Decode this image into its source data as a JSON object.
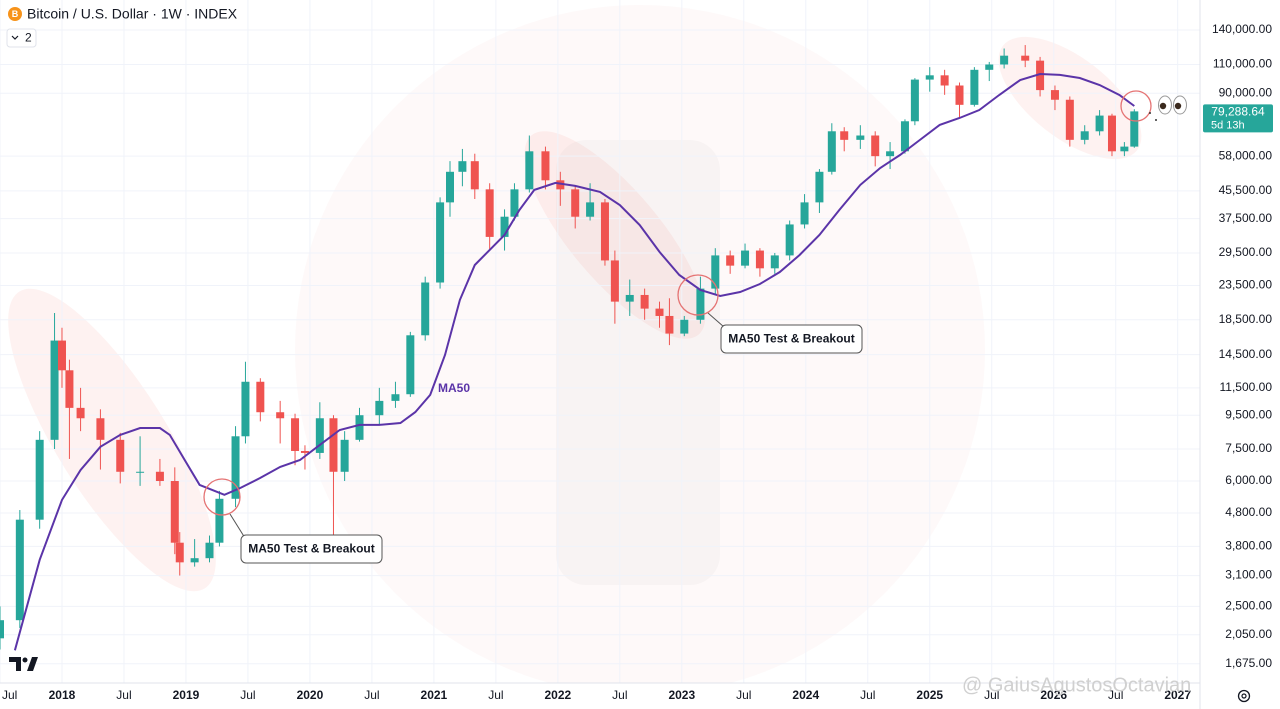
{
  "chart_data": {
    "type": "candlestick",
    "title": "Bitcoin / U.S. Dollar · 1W · INDEX",
    "indicator_count": "2",
    "log_scale": true,
    "grid": true,
    "xlim": [
      2017.5,
      2027.18
    ],
    "ylim": [
      1464,
      172600
    ],
    "xticks": [
      {
        "value": 2017.5,
        "label": "Jul"
      },
      2018,
      {
        "value": 2018.5,
        "label": "Jul"
      },
      2019,
      {
        "value": 2019.5,
        "label": "Jul"
      },
      2020,
      {
        "value": 2020.5,
        "label": "Jul"
      },
      2021,
      {
        "value": 2021.5,
        "label": "Jul"
      },
      2022,
      {
        "value": 2022.5,
        "label": "Jul"
      },
      2023,
      {
        "value": 2023.5,
        "label": "Jul"
      },
      2024,
      {
        "value": 2024.5,
        "label": "Jul"
      },
      2025,
      {
        "value": 2025.5,
        "label": "Jul"
      },
      2026,
      {
        "value": 2026.5,
        "label": "Jul"
      },
      2027
    ],
    "yticks": [
      {
        "value": 140000,
        "label": "140,000.00"
      },
      {
        "value": 110000,
        "label": "110,000.00"
      },
      {
        "value": 90000,
        "label": "90,000.00"
      },
      {
        "value": 58000,
        "label": "58,000.00"
      },
      {
        "value": 45500,
        "label": "45,500.00"
      },
      {
        "value": 37500,
        "label": "37,500.00"
      },
      {
        "value": 29500,
        "label": "29,500.00"
      },
      {
        "value": 23500,
        "label": "23,500.00"
      },
      {
        "value": 18500,
        "label": "18,500.00"
      },
      {
        "value": 14500,
        "label": "14,500.00"
      },
      {
        "value": 11500,
        "label": "11,500.00"
      },
      {
        "value": 9500,
        "label": "9,500.00"
      },
      {
        "value": 7500,
        "label": "7,500.00"
      },
      {
        "value": 6000,
        "label": "6,000.00"
      },
      {
        "value": 4800,
        "label": "4,800.00"
      },
      {
        "value": 3800,
        "label": "3,800.00"
      },
      {
        "value": 3100,
        "label": "3,100.00"
      },
      {
        "value": 2500,
        "label": "2,500.00"
      },
      {
        "value": 2050,
        "label": "2,050.00"
      },
      {
        "value": 1675,
        "label": "1,675.00"
      }
    ],
    "series": [
      {
        "type": "candlestick",
        "up_color": "#26a69a",
        "down_color": "#ef5350",
        "x": [
          2017.5,
          2017.66,
          2017.82,
          2017.94,
          2018.0,
          2018.06,
          2018.15,
          2018.31,
          2018.47,
          2018.63,
          2018.79,
          2018.91,
          2018.95,
          2019.07,
          2019.19,
          2019.27,
          2019.4,
          2019.48,
          2019.6,
          2019.76,
          2019.88,
          2019.96,
          2020.08,
          2020.19,
          2020.28,
          2020.4,
          2020.56,
          2020.69,
          2020.81,
          2020.93,
          2021.05,
          2021.13,
          2021.23,
          2021.33,
          2021.45,
          2021.57,
          2021.65,
          2021.77,
          2021.9,
          2022.02,
          2022.14,
          2022.26,
          2022.38,
          2022.46,
          2022.58,
          2022.7,
          2022.82,
          2022.9,
          2023.02,
          2023.15,
          2023.27,
          2023.39,
          2023.51,
          2023.63,
          2023.75,
          2023.87,
          2023.99,
          2024.11,
          2024.21,
          2024.31,
          2024.44,
          2024.56,
          2024.68,
          2024.8,
          2024.88,
          2025.0,
          2025.12,
          2025.24,
          2025.36,
          2025.48,
          2025.6,
          2025.77,
          2025.89,
          2026.01,
          2026.13,
          2026.25,
          2026.37,
          2026.47,
          2026.57,
          2026.65
        ],
        "open": [
          2000,
          2270,
          4580,
          8000,
          16000,
          13000,
          10000,
          9300,
          8000,
          6400,
          6400,
          6000,
          3900,
          3400,
          3500,
          3900,
          5300,
          8200,
          12000,
          9700,
          9300,
          7400,
          7300,
          9300,
          6400,
          8000,
          9500,
          10500,
          11000,
          16600,
          24000,
          42000,
          52000,
          56000,
          46000,
          33000,
          38000,
          46000,
          60000,
          49000,
          46000,
          38000,
          42000,
          28000,
          21000,
          22000,
          20000,
          19000,
          16800,
          18500,
          23000,
          29000,
          27000,
          30000,
          26500,
          29000,
          36000,
          42000,
          52000,
          69000,
          65000,
          67000,
          58000,
          60000,
          74000,
          99000,
          102000,
          95000,
          83000,
          106000,
          110000,
          117000,
          113000,
          92000,
          86000,
          65000,
          69000,
          77000,
          60000,
          62000
        ],
        "high": [
          2500,
          4900,
          8500,
          19400,
          17500,
          14000,
          11500,
          9900,
          8400,
          8200,
          7000,
          6600,
          4200,
          4000,
          4100,
          5600,
          8800,
          13800,
          12300,
          10500,
          9600,
          7700,
          10400,
          9500,
          8500,
          10000,
          11500,
          12000,
          17000,
          25000,
          43500,
          56000,
          61000,
          59000,
          48000,
          40000,
          48000,
          67000,
          62000,
          52000,
          47000,
          48000,
          43000,
          30000,
          24500,
          23000,
          21000,
          21500,
          19000,
          25000,
          30500,
          30000,
          31500,
          30500,
          29500,
          37000,
          44500,
          53000,
          73000,
          71000,
          72000,
          69000,
          64000,
          75000,
          100000,
          108000,
          106000,
          97000,
          108000,
          112000,
          123000,
          126000,
          116000,
          95000,
          88000,
          72000,
          80000,
          78000,
          64000,
          80500
        ],
        "low": [
          1850,
          2150,
          4300,
          7500,
          11500,
          7000,
          8500,
          6500,
          5900,
          5800,
          5800,
          3600,
          3100,
          3300,
          3400,
          3800,
          5000,
          7800,
          9100,
          7800,
          6700,
          6500,
          7000,
          4100,
          6000,
          7900,
          8900,
          10000,
          10800,
          16000,
          23000,
          38000,
          47000,
          43000,
          30000,
          30000,
          37000,
          45000,
          46000,
          41000,
          35000,
          37000,
          27000,
          18000,
          19000,
          18500,
          17500,
          15500,
          16500,
          18000,
          22000,
          25500,
          26500,
          25000,
          25500,
          28000,
          35000,
          39000,
          51000,
          60000,
          61000,
          54000,
          53000,
          59000,
          72000,
          91000,
          89000,
          76000,
          82000,
          98000,
          107000,
          108000,
          88000,
          80000,
          62000,
          63000,
          67000,
          58000,
          58000,
          61500
        ],
        "close": [
          2270,
          4580,
          8000,
          16000,
          13000,
          10000,
          9300,
          8000,
          6400,
          6400,
          6000,
          3900,
          3400,
          3500,
          3900,
          5300,
          8200,
          12000,
          9700,
          9300,
          7400,
          7300,
          9300,
          6400,
          8000,
          9500,
          10500,
          11000,
          16600,
          24000,
          42000,
          52000,
          56000,
          46000,
          33000,
          38000,
          46000,
          60000,
          49000,
          46000,
          38000,
          42000,
          28000,
          21000,
          22000,
          20000,
          19000,
          16800,
          18500,
          23000,
          29000,
          27000,
          30000,
          26500,
          29000,
          36000,
          42000,
          52000,
          69000,
          65000,
          67000,
          58000,
          60000,
          74000,
          99000,
          102000,
          95000,
          83000,
          106000,
          110000,
          117000,
          113000,
          92000,
          86000,
          65000,
          69000,
          77000,
          60000,
          62000,
          79288.64
        ]
      },
      {
        "type": "line",
        "name": "MA50",
        "color": "#5b34a8",
        "x": [
          2017.62,
          2017.82,
          2018.0,
          2018.15,
          2018.31,
          2018.47,
          2018.63,
          2018.79,
          2018.87,
          2018.99,
          2019.11,
          2019.31,
          2019.44,
          2019.6,
          2019.76,
          2019.92,
          2020.08,
          2020.24,
          2020.4,
          2020.56,
          2020.73,
          2020.85,
          2020.97,
          2021.09,
          2021.21,
          2021.33,
          2021.45,
          2021.57,
          2021.69,
          2021.81,
          2021.98,
          2022.14,
          2022.34,
          2022.5,
          2022.66,
          2022.82,
          2022.98,
          2023.15,
          2023.31,
          2023.47,
          2023.63,
          2023.79,
          2023.95,
          2024.11,
          2024.27,
          2024.44,
          2024.6,
          2024.76,
          2024.92,
          2025.08,
          2025.24,
          2025.4,
          2025.56,
          2025.73,
          2025.89,
          2026.05,
          2026.21,
          2026.37,
          2026.53,
          2026.65
        ],
        "values": [
          1840,
          3460,
          5260,
          6480,
          7620,
          8280,
          8690,
          8690,
          8280,
          6950,
          5840,
          5450,
          5720,
          6130,
          6620,
          6950,
          7720,
          8570,
          8880,
          8880,
          9000,
          9710,
          10950,
          14470,
          21260,
          27130,
          30130,
          33450,
          39830,
          45810,
          48110,
          47110,
          45180,
          41240,
          35860,
          29710,
          25300,
          22780,
          21840,
          22460,
          23750,
          25830,
          29090,
          33450,
          39830,
          47440,
          53410,
          58480,
          64950,
          72140,
          75700,
          80050,
          88910,
          98740,
          102980,
          102270,
          100130,
          95350,
          88910,
          82330
        ]
      }
    ],
    "last_price": {
      "value": 79288.64,
      "label": "79,288.64"
    },
    "countdown": "5d 13h",
    "annotations": [
      "MA50 Test & Breakout",
      "MA50 Test & Breakout"
    ],
    "watermark": "@ GaiusAgustosOctavian"
  }
}
